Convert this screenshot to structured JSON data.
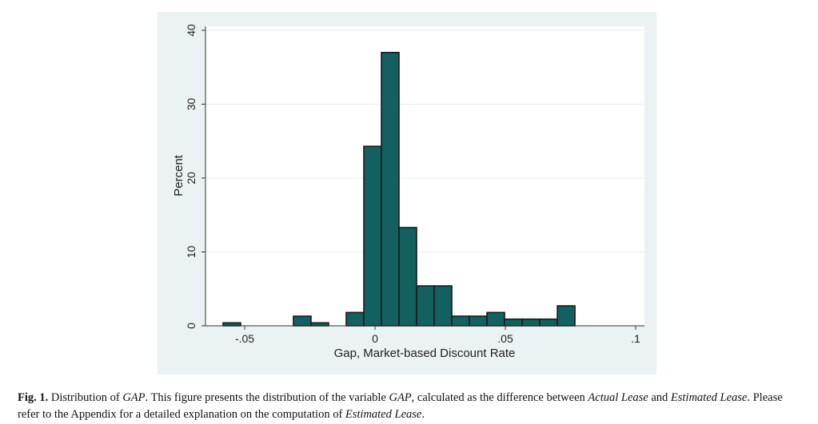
{
  "chart_data": {
    "type": "bar",
    "subtype": "histogram",
    "title": "",
    "xlabel": "Gap, Market-based Discount Rate",
    "ylabel": "Percent",
    "xlim": [
      -0.06,
      0.1
    ],
    "ylim": [
      0,
      40
    ],
    "xticks": [
      -0.05,
      0,
      0.05,
      0.1
    ],
    "xtick_labels": [
      "-.05",
      "0",
      ".05",
      ".1"
    ],
    "yticks": [
      0,
      10,
      20,
      30,
      40
    ],
    "ytick_labels": [
      "0",
      "10",
      "20",
      "30",
      "40"
    ],
    "grid": true,
    "bin_start": -0.0583,
    "bin_width": 0.00675,
    "values": [
      0.4,
      0,
      0,
      0,
      1.3,
      0.4,
      0,
      1.8,
      24.3,
      37,
      13.3,
      5.4,
      5.4,
      1.3,
      1.3,
      1.8,
      0.9,
      0.9,
      0.9,
      2.7
    ],
    "bar_color": "#12605f",
    "edge_color": "#1a1a1a"
  },
  "caption": {
    "label": "Fig. 1.",
    "t1": " Distribution of ",
    "i1": "GAP",
    "t2": ". This figure presents the distribution of the variable ",
    "i2": "GAP",
    "t3": ", calculated as the difference between ",
    "i3": "Actual Lease",
    "t4": " and ",
    "i4": "Estimated Lease",
    "t5": ". Please refer to the Appendix for a detailed explanation on the computation of ",
    "i5": "Estimated Lease",
    "t6": "."
  }
}
